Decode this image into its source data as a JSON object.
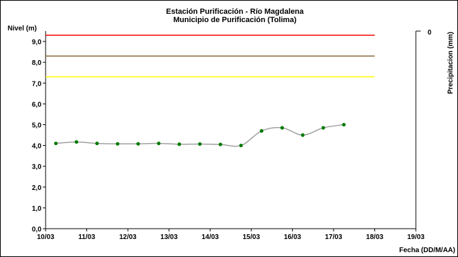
{
  "chart_data": {
    "type": "line",
    "title": "Estación Purificación - Río Magdalena",
    "subtitle": "Municipio de Purificación (Tolima)",
    "ylabel": "Nivel (m)",
    "y2label": "Precipitacion (mm)",
    "xlabel": "Fecha (DD/M/AA)",
    "ylim": [
      0,
      9.5
    ],
    "y2_tick": "0",
    "yticks": [
      "0,0",
      "1,0",
      "2,0",
      "3,0",
      "4,0",
      "5,0",
      "6,0",
      "7,0",
      "8,0",
      "9,0"
    ],
    "xticks": [
      "10/03",
      "11/03",
      "12/03",
      "13/03",
      "14/03",
      "15/03",
      "16/03",
      "17/03",
      "18/03",
      "19/03"
    ],
    "grid": false,
    "threshold_lines": [
      {
        "value": 9.3,
        "color": "#ff0000"
      },
      {
        "value": 8.3,
        "color": "#8b6a3e"
      },
      {
        "value": 7.3,
        "color": "#ffff00"
      }
    ],
    "series": [
      {
        "x": [
          10.25,
          10.75,
          11.25,
          11.75,
          12.25,
          12.75,
          13.25,
          13.75,
          14.25,
          14.75,
          15.25,
          15.75,
          16.25,
          16.75,
          17.25
        ],
        "values": [
          4.1,
          4.17,
          4.1,
          4.08,
          4.08,
          4.1,
          4.06,
          4.07,
          4.05,
          4.0,
          4.7,
          4.85,
          4.5,
          4.85,
          5.0
        ],
        "line_color": "#a0a0a0",
        "marker_color": "#007a00"
      }
    ]
  }
}
